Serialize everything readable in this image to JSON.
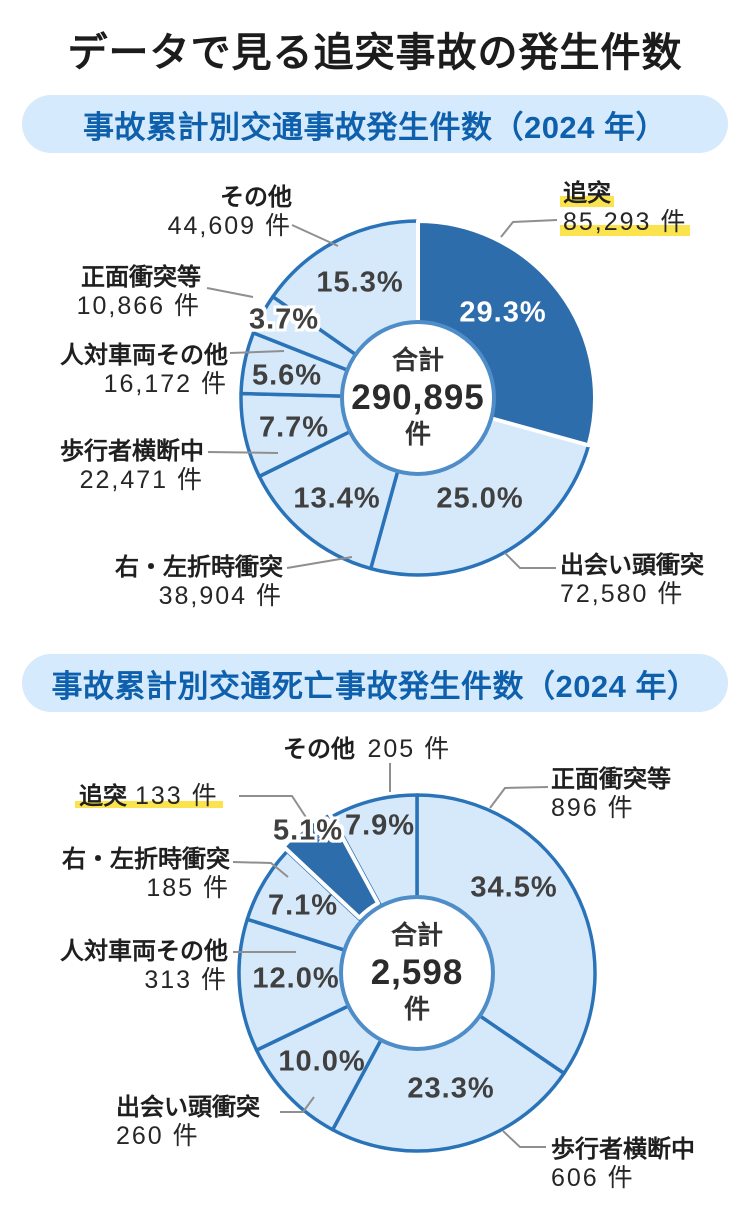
{
  "page": {
    "title": "データで見る追突事故の発生件数"
  },
  "colors": {
    "accent": "#2e6dac",
    "slice_fill": "#d6e9fa",
    "slice_stroke": "#2a73b8",
    "inner_ring": "#4e8dc7",
    "header_bg": "#d5eafc",
    "header_text": "#0f60ac",
    "highlight_yellow": "#fbe34d",
    "leader_gray": "#8f8f8f"
  },
  "chart_data": [
    {
      "type": "pie",
      "subtype": "donut",
      "title": "事故累計別交通事故発生件数（2024 年）",
      "legend_position": "outside-callouts",
      "center": {
        "label": "合計",
        "value": "290,895",
        "unit": "件"
      },
      "total": 290895,
      "segments": [
        {
          "label": "追突",
          "value": 85293,
          "count_text": "85,293 件",
          "pct": 29.3,
          "percent": "29.3%",
          "highlighted": true
        },
        {
          "label": "出会い頭衝突",
          "value": 72580,
          "count_text": "72,580 件",
          "pct": 25.0,
          "percent": "25.0%"
        },
        {
          "label": "右・左折時衝突",
          "value": 38904,
          "count_text": "38,904 件",
          "pct": 13.4,
          "percent": "13.4%"
        },
        {
          "label": "歩行者横断中",
          "value": 22471,
          "count_text": "22,471 件",
          "pct": 7.7,
          "percent": "7.7%"
        },
        {
          "label": "人対車両その他",
          "value": 16172,
          "count_text": "16,172 件",
          "pct": 5.6,
          "percent": "5.6%"
        },
        {
          "label": "正面衝突等",
          "value": 10866,
          "count_text": "10,866 件",
          "pct": 3.7,
          "percent": "3.7%"
        },
        {
          "label": "その他",
          "value": 44609,
          "count_text": "44,609 件",
          "pct": 15.3,
          "percent": "15.3%"
        }
      ]
    },
    {
      "type": "pie",
      "subtype": "donut",
      "title": "事故累計別交通死亡事故発生件数（2024 年）",
      "legend_position": "outside-callouts",
      "center": {
        "label": "合計",
        "value": "2,598",
        "unit": "件"
      },
      "total": 2598,
      "segments": [
        {
          "label": "正面衝突等",
          "value": 896,
          "count_text": "896 件",
          "pct": 34.5,
          "percent": "34.5%"
        },
        {
          "label": "歩行者横断中",
          "value": 606,
          "count_text": "606 件",
          "pct": 23.3,
          "percent": "23.3%"
        },
        {
          "label": "出会い頭衝突",
          "value": 260,
          "count_text": "260 件",
          "pct": 10.0,
          "percent": "10.0%"
        },
        {
          "label": "人対車両その他",
          "value": 313,
          "count_text": "313 件",
          "pct": 12.0,
          "percent": "12.0%"
        },
        {
          "label": "右・左折時衝突",
          "value": 185,
          "count_text": "185 件",
          "pct": 7.1,
          "percent": "7.1%"
        },
        {
          "label": "追突",
          "value": 133,
          "count_text": "133 件",
          "pct": 5.1,
          "percent": "5.1%",
          "highlighted": true
        },
        {
          "label": "その他",
          "value": 205,
          "count_text": "205 件",
          "pct": 7.9,
          "percent": "7.9%"
        }
      ]
    }
  ]
}
